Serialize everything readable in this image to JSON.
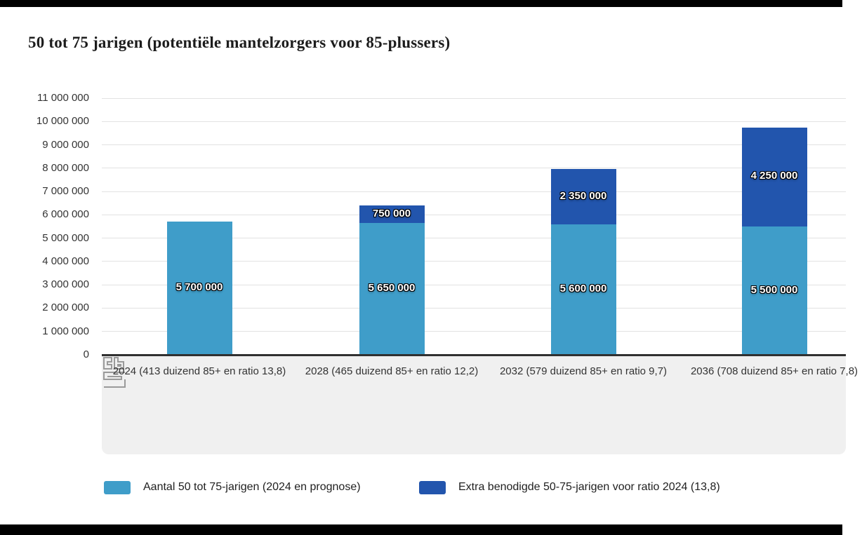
{
  "title": "50 tot 75 jarigen (potentiële mantelzorgers voor 85-plussers)",
  "chart_data": {
    "type": "bar",
    "stacked": true,
    "title": "50 tot 75 jarigen (potentiële mantelzorgers voor 85-plussers)",
    "categories": [
      "2024 (413 duizend 85+ en ratio 13,8)",
      "2028 (465 duizend 85+ en ratio 12,2)",
      "2032 (579 duizend 85+ en ratio 9,7)",
      "2036 (708 duizend 85+ en ratio 7,8)"
    ],
    "series": [
      {
        "name": "Aantal 50 tot 75-jarigen (2024 en prognose)",
        "color": "#3f9dc9",
        "values": [
          5700000,
          5650000,
          5600000,
          5500000
        ],
        "labels": [
          "5 700 000",
          "5 650 000",
          "5 600 000",
          "5 500 000"
        ]
      },
      {
        "name": "Extra benodigde 50-75-jarigen voor ratio 2024 (13,8)",
        "color": "#2255ad",
        "values": [
          0,
          750000,
          2350000,
          4250000
        ],
        "labels": [
          "",
          "750 000",
          "2 350 000",
          "4 250 000"
        ]
      }
    ],
    "ylim": [
      0,
      11000000
    ],
    "ytick_step": 1000000,
    "ytick_labels": [
      "0",
      "1 000 000",
      "2 000 000",
      "3 000 000",
      "4 000 000",
      "5 000 000",
      "6 000 000",
      "7 000 000",
      "8 000 000",
      "9 000 000",
      "10 000 000",
      "11 000 000"
    ],
    "grid": true,
    "legend_position": "bottom"
  },
  "logo": {
    "name": "cbs-logo"
  }
}
